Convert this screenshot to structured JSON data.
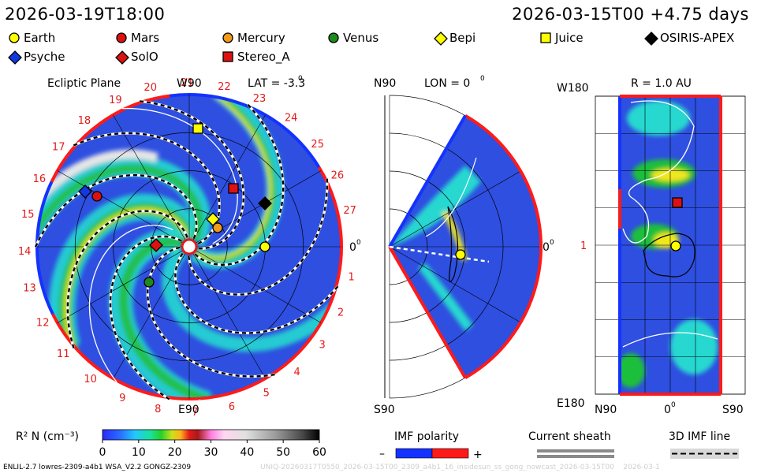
{
  "header": {
    "left_time": "2026-03-19T18:00",
    "right_time": "2026-03-15T00 +4.75 days"
  },
  "legend": [
    {
      "name": "Earth",
      "shape": "circle",
      "color": "#ffff00"
    },
    {
      "name": "Mars",
      "shape": "circle",
      "color": "#dd1111"
    },
    {
      "name": "Mercury",
      "shape": "circle",
      "color": "#f29a1a"
    },
    {
      "name": "Venus",
      "shape": "circle",
      "color": "#1c8a1c"
    },
    {
      "name": "Bepi",
      "shape": "diamond",
      "color": "#ffff00"
    },
    {
      "name": "Juice",
      "shape": "square",
      "color": "#ffff00"
    },
    {
      "name": "OSIRIS-APEX",
      "shape": "diamond",
      "color": "#000000"
    },
    {
      "name": "Psyche",
      "shape": "diamond",
      "color": "#1438e0"
    },
    {
      "name": "SolO",
      "shape": "diamond",
      "color": "#dd1111"
    },
    {
      "name": "Stereo_A",
      "shape": "square",
      "color": "#dd1111"
    }
  ],
  "panels": {
    "ecliptic": {
      "title": "Ecliptic Plane",
      "w_label": "W90",
      "lat_label": "LAT = -3.3",
      "lat_deg": "0",
      "e_label": "E90",
      "zero_label": "0",
      "zero_deg": "0",
      "carrington_ticks": [
        "1",
        "2",
        "3",
        "4",
        "5",
        "6",
        "7",
        "8",
        "9",
        "10",
        "11",
        "12",
        "13",
        "14",
        "15",
        "16",
        "17",
        "18",
        "19",
        "20",
        "21",
        "22",
        "23",
        "24",
        "25",
        "26",
        "27"
      ]
    },
    "meridional": {
      "n_label": "N90",
      "s_label": "S90",
      "lon_label": "LON = 0",
      "lon_deg": "0",
      "zero_label": "0",
      "zero_deg": "0"
    },
    "map": {
      "title": "R = 1.0 AU",
      "top_left": "W180",
      "bottom_left": "E180",
      "mid_left": "1",
      "x_left": "N90",
      "x_mid": "0",
      "x_mid_deg": "0",
      "x_right": "S90"
    }
  },
  "colorbar": {
    "label": "R² N (cm⁻³)",
    "ticks": [
      "0",
      "10",
      "20",
      "30",
      "40",
      "50",
      "60"
    ],
    "range": [
      0,
      60
    ]
  },
  "bottom_legends": {
    "imf_polarity": "IMF polarity",
    "imf_minus": "–",
    "imf_plus": "+",
    "current_sheath": "Current sheath",
    "imf_line": "3D IMF line"
  },
  "footer": {
    "model": "ENLIL-2.7 lowres-2309-a4b1 WSA_V2.2 GONGZ-2309",
    "run_id": "UNIQ-20260317T0550_2026-03-15T00_2309_a4b1_16_insidesun_ss_gong_nowcast_2026-03-15T00",
    "date_stub": "2026-03-1"
  },
  "chart_data": {
    "type": "heatmap",
    "title": "",
    "quantity": "R² N (cm⁻³)",
    "range": [
      0,
      60
    ],
    "spacecraft": [
      "Earth",
      "Mars",
      "Mercury",
      "Venus",
      "Bepi",
      "Juice",
      "OSIRIS-APEX",
      "Psyche",
      "SolO",
      "Stereo_A"
    ],
    "ecliptic_latitude_deg": -3.3,
    "meridional_longitude_deg": 0,
    "map_radius_au": 1.0,
    "colors": {
      "background": "#2e4fe0",
      "cyan": "#26d8d0",
      "green": "#1fbf3a",
      "yellow": "#f0e81a",
      "white": "#e6e6e6",
      "positive": "#ff1a1a",
      "negative": "#1432ff"
    }
  }
}
